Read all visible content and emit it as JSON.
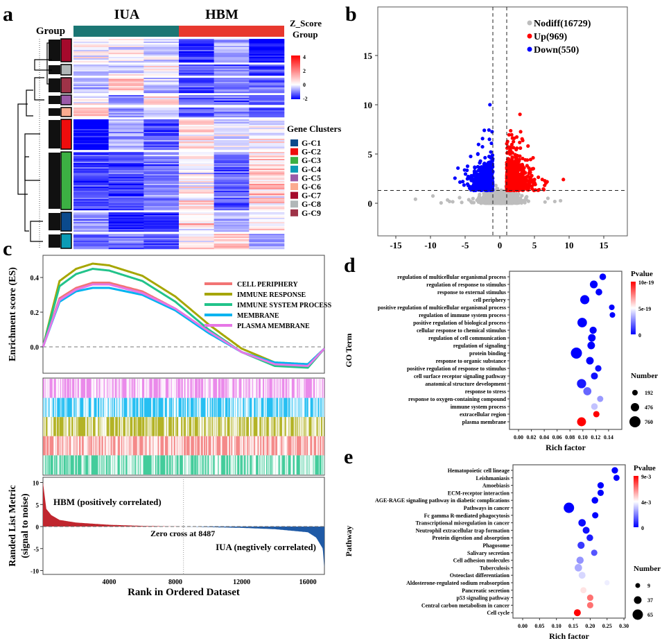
{
  "panel_labels": [
    "a",
    "b",
    "c",
    "d",
    "e"
  ],
  "chart_data": [
    {
      "panel": "a",
      "type": "heatmap",
      "column_groups": [
        "IUA",
        "HBM"
      ],
      "group_colors": {
        "IUA": "#1b7674",
        "HBM": "#e8382f"
      },
      "row_annotation_title": "Group",
      "legend_title_1": "Z_Score",
      "legend_title_2": "Group",
      "colorbar_ticks": [
        "4",
        "2",
        "0",
        "-2"
      ],
      "zrange": [
        -2,
        4
      ],
      "clusters_title": "Gene Clusters",
      "clusters": [
        {
          "name": "G-C1",
          "color": "#0b4a8c"
        },
        {
          "name": "G-C2",
          "color": "#ef0d0d"
        },
        {
          "name": "G-C3",
          "color": "#3cb043"
        },
        {
          "name": "G-C4",
          "color": "#0c9bb5"
        },
        {
          "name": "G-C5",
          "color": "#9b5aa8"
        },
        {
          "name": "G-C6",
          "color": "#fbab8f"
        },
        {
          "name": "G-C7",
          "color": "#a50a2c"
        },
        {
          "name": "G-C8",
          "color": "#b1b7b8"
        },
        {
          "name": "G-C9",
          "color": "#9e3348"
        }
      ],
      "row_order": [
        {
          "cluster": "G-C7",
          "mean_z": [
            1,
            1,
            0.6,
            -1.5,
            0.1,
            -2
          ]
        },
        {
          "cluster": "G-C8",
          "mean_z": [
            0.3,
            0.4,
            1.1,
            -1.2,
            -0.7,
            -1.2
          ]
        },
        {
          "cluster": "G-C9",
          "mean_z": [
            0.1,
            1.6,
            0.2,
            -1.2,
            -0.5,
            -1
          ]
        },
        {
          "cluster": "G-C5",
          "mean_z": [
            1,
            -0.5,
            1.3,
            -0.8,
            -0.8,
            -0.8
          ]
        },
        {
          "cluster": "G-C6",
          "mean_z": [
            1.6,
            0,
            0.5,
            -1,
            -0.5,
            -1
          ]
        },
        {
          "cluster": "G-C2",
          "mean_z": [
            -2,
            0.1,
            -1,
            1.5,
            0.5,
            0.8
          ]
        },
        {
          "cluster": "G-C3",
          "mean_z": [
            -1.2,
            -1.2,
            -0.5,
            1.2,
            -0.8,
            1.4
          ]
        },
        {
          "cluster": "G-C1",
          "mean_z": [
            -0.3,
            -1.5,
            -1.5,
            1,
            0.3,
            1
          ]
        },
        {
          "cluster": "G-C4",
          "mean_z": [
            -1,
            -0.8,
            -1,
            1,
            1.5,
            -0.3
          ]
        }
      ]
    },
    {
      "panel": "b",
      "type": "scatter",
      "xlim": [
        -18,
        18
      ],
      "ylim": [
        -3.5,
        19.5
      ],
      "xticks": [
        -15,
        -10,
        -5,
        0,
        5,
        10,
        15
      ],
      "yticks": [
        0,
        5,
        10,
        15
      ],
      "fc_threshold": 1,
      "p_threshold_line": 1.3,
      "legend": [
        {
          "label": "Nodiff(16729)",
          "count": 16729,
          "color": "#bdbdbd"
        },
        {
          "label": "Up(969)",
          "count": 969,
          "color": "#ff0000"
        },
        {
          "label": "Down(550)",
          "count": 550,
          "color": "#0000ff"
        }
      ]
    },
    {
      "panel": "c",
      "type": "line",
      "ylabel": "Enrichment score (ES)",
      "yticks": [
        "0.4",
        "0.2",
        "0.0"
      ],
      "x": [
        0,
        1000,
        2000,
        3000,
        4000,
        6000,
        8000,
        10000,
        12000,
        14000,
        16000,
        17000
      ],
      "series": [
        {
          "name": "CELL PERIPHERY",
          "color": "#f27474",
          "values": [
            0,
            0.28,
            0.34,
            0.37,
            0.37,
            0.32,
            0.22,
            0.09,
            -0.03,
            -0.1,
            -0.11,
            -0.01
          ]
        },
        {
          "name": "IMMUNE RESPONSE",
          "color": "#a6a600",
          "values": [
            0,
            0.38,
            0.45,
            0.48,
            0.47,
            0.41,
            0.29,
            0.13,
            -0.01,
            -0.09,
            -0.1,
            -0.01
          ]
        },
        {
          "name": "IMMUNE SYSTEM PROCESS",
          "color": "#22c38a",
          "values": [
            0,
            0.35,
            0.42,
            0.45,
            0.44,
            0.38,
            0.26,
            0.1,
            -0.03,
            -0.11,
            -0.12,
            -0.01
          ]
        },
        {
          "name": "MEMBRANE",
          "color": "#00b4f0",
          "values": [
            0,
            0.26,
            0.32,
            0.34,
            0.34,
            0.3,
            0.21,
            0.08,
            -0.03,
            -0.09,
            -0.1,
            -0.01
          ]
        },
        {
          "name": "PLASMA MEMBRANE",
          "color": "#e676e6",
          "values": [
            0,
            0.27,
            0.33,
            0.36,
            0.36,
            0.31,
            0.22,
            0.09,
            -0.03,
            -0.1,
            -0.11,
            -0.01
          ]
        }
      ],
      "hit_rows": [
        "PLASMA MEMBRANE",
        "MEMBRANE",
        "IMMUNE RESPONSE",
        "CELL PERIPHERY",
        "IMMUNE SYSTEM PROCESS"
      ],
      "metric": {
        "ylabel_1": "Randed List Metric",
        "ylabel_2": "(signal to noise)",
        "yticks": [
          "10",
          "5",
          "0",
          "-5",
          "-10"
        ],
        "ranks": [
          0,
          200,
          500,
          1000,
          2000,
          4000,
          6000,
          8487,
          12000,
          14000,
          16000,
          16500,
          16900,
          17000
        ],
        "values": [
          10,
          4,
          2.6,
          1.5,
          0.9,
          0.4,
          0.15,
          0,
          -0.3,
          -0.6,
          -1.3,
          -2.5,
          -5,
          -10
        ],
        "pos_label": "HBM (positively correlated)",
        "neg_label": "IUA (negtively correlated)",
        "zero_label": "Zero cross at 8487",
        "zero_cross": 8487,
        "pos_color": "#c0262e",
        "neg_color": "#1f5aa6"
      },
      "xlabel": "Rank in Ordered Dataset",
      "xticks": [
        "4000",
        "8000",
        "12000",
        "16000"
      ],
      "xlim": [
        0,
        17000
      ]
    },
    {
      "panel": "d",
      "type": "scatter",
      "ylabel": "GO Term",
      "xlabel": "Rich factor",
      "xticks": [
        "0.00",
        "0.02",
        "0.04",
        "0.06",
        "0.08",
        "0.10",
        "0.12",
        "0.14"
      ],
      "color_title": "Pvalue",
      "color_ticks": [
        "10e-19",
        "5e-19",
        "0"
      ],
      "color_range": [
        0,
        1e-18
      ],
      "size_title": "Number",
      "size_ticks": [
        192,
        476,
        760
      ],
      "terms": [
        {
          "label": "regulation of multicellular organismal process",
          "rich": 0.131,
          "number": 300,
          "p": 0
        },
        {
          "label": "regulation of response to stimulus",
          "rich": 0.117,
          "number": 420,
          "p": 0
        },
        {
          "label": "response to external stimulus",
          "rich": 0.125,
          "number": 310,
          "p": 0
        },
        {
          "label": "cell periphery",
          "rich": 0.103,
          "number": 560,
          "p": 0
        },
        {
          "label": "positive regulation of multicellular organismal process",
          "rich": 0.145,
          "number": 200,
          "p": 0
        },
        {
          "label": "regulation of immune system process",
          "rich": 0.146,
          "number": 200,
          "p": 0
        },
        {
          "label": "positive regulation of biological process",
          "rich": 0.099,
          "number": 600,
          "p": 0
        },
        {
          "label": "cellular response to chemical stimulus",
          "rich": 0.116,
          "number": 360,
          "p": 0
        },
        {
          "label": "regulation of cell communication",
          "rich": 0.114,
          "number": 400,
          "p": 0
        },
        {
          "label": "regulation of signaling",
          "rich": 0.113,
          "number": 400,
          "p": 0
        },
        {
          "label": "protein binding",
          "rich": 0.09,
          "number": 760,
          "p": 0
        },
        {
          "label": "response to organic substance",
          "rich": 0.111,
          "number": 400,
          "p": 0
        },
        {
          "label": "positive regulation of response to stimulus",
          "rich": 0.124,
          "number": 280,
          "p": 3e-20
        },
        {
          "label": "cell surface receptor signaling pathway",
          "rich": 0.118,
          "number": 340,
          "p": 3e-20
        },
        {
          "label": "anatomical structure development",
          "rich": 0.098,
          "number": 570,
          "p": 5e-20
        },
        {
          "label": "response to stress",
          "rich": 0.107,
          "number": 450,
          "p": 2e-19
        },
        {
          "label": "response to oxygen-containing compound",
          "rich": 0.127,
          "number": 260,
          "p": 3e-19
        },
        {
          "label": "immune system process",
          "rich": 0.118,
          "number": 300,
          "p": 3.8e-19
        },
        {
          "label": "extracellular region",
          "rich": 0.121,
          "number": 270,
          "p": 1e-18
        },
        {
          "label": "plasma membrane",
          "rich": 0.098,
          "number": 540,
          "p": 1e-18
        }
      ]
    },
    {
      "panel": "e",
      "type": "scatter",
      "ylabel": "Pathway",
      "xlabel": "Rich factor",
      "xticks": [
        "0.00",
        "0.05",
        "0.10",
        "0.15",
        "0.20",
        "0.25",
        "0.30"
      ],
      "color_title": "Pvalue",
      "color_ticks": [
        "9e-3",
        "4e-3",
        "0"
      ],
      "color_range": [
        0,
        0.009
      ],
      "size_title": "Number",
      "size_ticks": [
        9,
        37,
        65
      ],
      "terms": [
        {
          "label": "Hematopoietic cell lineage",
          "rich": 0.273,
          "number": 25,
          "p": 0
        },
        {
          "label": "Leishmaniasis",
          "rich": 0.278,
          "number": 22,
          "p": 0
        },
        {
          "label": "Amoebiasis",
          "rich": 0.231,
          "number": 25,
          "p": 0
        },
        {
          "label": "ECM-receptor interaction",
          "rich": 0.231,
          "number": 24,
          "p": 0
        },
        {
          "label": "AGE-RAGE signaling pathway in diabetic complications",
          "rich": 0.214,
          "number": 27,
          "p": 0
        },
        {
          "label": "Pathways in cancer",
          "rich": 0.137,
          "number": 65,
          "p": 0
        },
        {
          "label": "Fc gamma R-mediated phagocytosis",
          "rich": 0.215,
          "number": 24,
          "p": 0
        },
        {
          "label": "Transcriptional misregulation in cancer",
          "rich": 0.176,
          "number": 35,
          "p": 0.0002
        },
        {
          "label": "Neutrophil extracellular trap formation",
          "rich": 0.188,
          "number": 30,
          "p": 0.0003
        },
        {
          "label": "Protein digestion and absorption",
          "rich": 0.199,
          "number": 27,
          "p": 0.0005
        },
        {
          "label": "Phagosome",
          "rich": 0.173,
          "number": 32,
          "p": 0.001
        },
        {
          "label": "Salivary secretion",
          "rich": 0.212,
          "number": 24,
          "p": 0.0015
        },
        {
          "label": "Cell adhesion molecules",
          "rich": 0.17,
          "number": 33,
          "p": 0.0026
        },
        {
          "label": "Tuberculosis",
          "rich": 0.165,
          "number": 35,
          "p": 0.003
        },
        {
          "label": "Osteoclast differentiation",
          "rich": 0.176,
          "number": 30,
          "p": 0.0038
        },
        {
          "label": "Aldosterone-regulated sodium reabsorption",
          "rich": 0.25,
          "number": 12,
          "p": 0.0042
        },
        {
          "label": "Pancreatic secretion",
          "rich": 0.18,
          "number": 22,
          "p": 0.005
        },
        {
          "label": "p53 signaling pathway",
          "rich": 0.2,
          "number": 24,
          "p": 0.007
        },
        {
          "label": "Central carbon metabolism in cancer",
          "rich": 0.2,
          "number": 24,
          "p": 0.007
        },
        {
          "label": "Cell cycle",
          "rich": 0.162,
          "number": 30,
          "p": 0.009
        }
      ]
    }
  ]
}
